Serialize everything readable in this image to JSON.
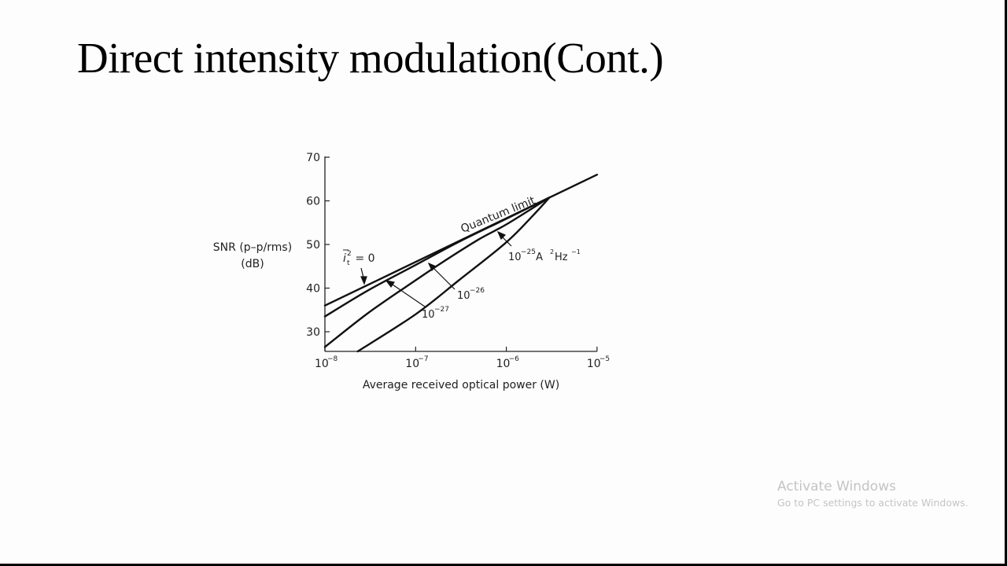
{
  "slide": {
    "title": "Direct intensity modulation(Cont.)"
  },
  "watermark": {
    "title": "Activate Windows",
    "subtitle": "Go to PC settings to activate Windows."
  },
  "chart_data": {
    "type": "line",
    "title": "",
    "xlabel": "Average received optical power (W)",
    "ylabel": "SNR (p–p/rms) (dB)",
    "ylabel_line1": "SNR (p–p/rms)",
    "ylabel_line2": "(dB)",
    "xscale": "log",
    "xlim": [
      1e-08,
      1e-05
    ],
    "ylim": [
      25.5,
      70
    ],
    "x_ticks": [
      1e-08,
      1e-07,
      1e-06,
      1e-05
    ],
    "x_tick_labels": [
      {
        "base": "10",
        "exp": "−8"
      },
      {
        "base": "10",
        "exp": "−7"
      },
      {
        "base": "10",
        "exp": "−6"
      },
      {
        "base": "10",
        "exp": "−5"
      }
    ],
    "y_ticks": [
      30,
      40,
      50,
      60,
      70
    ],
    "y_tick_labels": [
      "30",
      "40",
      "50",
      "60",
      "70"
    ],
    "grid": false,
    "legend": "none (inline annotations)",
    "series": [
      {
        "name": "Quantum limit (i_t^2 = 0)",
        "points": [
          [
            1e-08,
            36.0
          ],
          [
            1e-07,
            46.0
          ],
          [
            1e-06,
            56.0
          ],
          [
            1e-05,
            66.0
          ]
        ]
      },
      {
        "name": "10^-27 A^2 Hz^-1",
        "points": [
          [
            1e-08,
            33.5
          ],
          [
            3e-08,
            39.5
          ],
          [
            1e-07,
            45.3
          ],
          [
            3e-07,
            50.6
          ],
          [
            1e-06,
            55.9
          ],
          [
            3e-06,
            60.8
          ]
        ]
      },
      {
        "name": "10^-26 A^2 Hz^-1",
        "points": [
          [
            1e-08,
            26.5
          ],
          [
            3e-08,
            34.3
          ],
          [
            1e-07,
            41.8
          ],
          [
            2e-07,
            46.0
          ],
          [
            5e-07,
            51.2
          ],
          [
            1e-06,
            54.6
          ],
          [
            3e-06,
            60.8
          ]
        ]
      },
      {
        "name": "10^-25 A^2 Hz^-1",
        "points": [
          [
            2.3e-08,
            25.5
          ],
          [
            1e-07,
            34.0
          ],
          [
            3e-07,
            41.8
          ],
          [
            1e-06,
            50.5
          ],
          [
            2e-06,
            56.8
          ],
          [
            3e-06,
            60.8
          ]
        ]
      }
    ],
    "annotations": [
      {
        "text": "Quantum limit",
        "near_x": 2e-07,
        "near_y": 53,
        "rotated_deg": -22
      },
      {
        "text_parts": {
          "var": "i",
          "sup": "2",
          "sub": "t",
          "rest": " = 0"
        },
        "target": "Quantum limit curve"
      },
      {
        "text_parts": {
          "base": "10",
          "exp": "−27"
        },
        "target": "10^-27 curve"
      },
      {
        "text_parts": {
          "base": "10",
          "exp": "−26"
        },
        "target": "10^-26 curve"
      },
      {
        "text_parts": {
          "base": "10",
          "exp": "−25",
          "unit": " A",
          "unit_sup": "2",
          "unit2": "Hz",
          "unit2_sup": "−1"
        },
        "target": "10^-25 curve"
      }
    ]
  }
}
